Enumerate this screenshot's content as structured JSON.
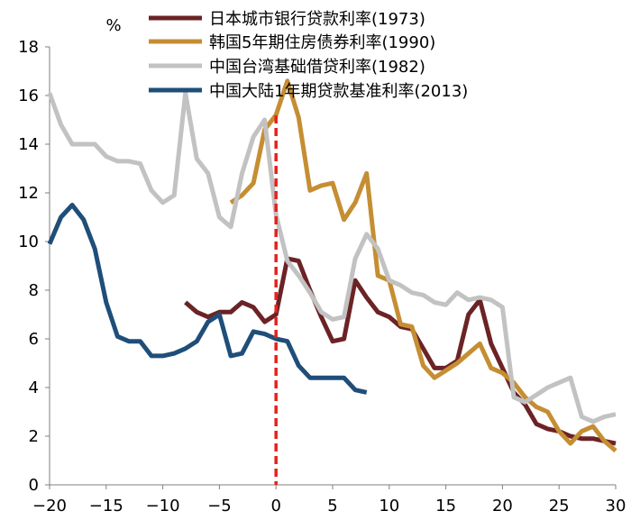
{
  "chart_data": {
    "type": "line",
    "ylabel": "%",
    "xlim": [
      -20,
      30
    ],
    "ylim": [
      0,
      18
    ],
    "x_ticks": [
      -20,
      -15,
      -10,
      -5,
      0,
      5,
      10,
      15,
      20,
      25,
      30
    ],
    "y_ticks": [
      0,
      2,
      4,
      6,
      8,
      10,
      12,
      14,
      16,
      18
    ],
    "x_tick_labels": [
      "−20",
      "−15",
      "−10",
      "−5",
      "0",
      "5",
      "10",
      "15",
      "20",
      "25",
      "30"
    ],
    "y_tick_labels": [
      "0",
      "2",
      "4",
      "6",
      "8",
      "10",
      "12",
      "14",
      "16",
      "18"
    ],
    "vline": {
      "x": 0,
      "color": "#e8211b",
      "style": "dashed"
    },
    "legend_position": "top",
    "series": [
      {
        "name": "日本城市银行贷款利率(1973)",
        "color": "#6b2326",
        "x": [
          -8,
          -7,
          -6,
          -5,
          -4,
          -3,
          -2,
          -1,
          0,
          1,
          2,
          3,
          4,
          5,
          6,
          7,
          8,
          9,
          10,
          11,
          12,
          13,
          14,
          15,
          16,
          17,
          18,
          19,
          20,
          21,
          22,
          23,
          24,
          25,
          26,
          27,
          28,
          29,
          30
        ],
        "y": [
          7.5,
          7.1,
          6.9,
          7.1,
          7.1,
          7.5,
          7.3,
          6.7,
          7.0,
          9.3,
          9.2,
          8.0,
          6.9,
          5.9,
          6.0,
          8.4,
          7.7,
          7.1,
          6.9,
          6.5,
          6.4,
          5.6,
          4.8,
          4.8,
          5.1,
          7.0,
          7.6,
          5.8,
          4.8,
          3.8,
          3.3,
          2.5,
          2.3,
          2.2,
          2.0,
          1.9,
          1.9,
          1.8,
          1.7
        ]
      },
      {
        "name": "韩国5年期住房债券利率(1990)",
        "color": "#c58e33",
        "x": [
          -4,
          -3,
          -2,
          -1,
          0,
          1,
          2,
          3,
          4,
          5,
          6,
          7,
          8,
          9,
          10,
          11,
          12,
          13,
          14,
          15,
          16,
          17,
          18,
          19,
          20,
          21,
          22,
          23,
          24,
          25,
          26,
          27,
          28,
          29,
          30
        ],
        "y": [
          11.6,
          11.9,
          12.4,
          14.6,
          15.2,
          16.6,
          15.1,
          12.1,
          12.3,
          12.4,
          10.9,
          11.6,
          12.8,
          8.6,
          8.4,
          6.6,
          6.5,
          4.9,
          4.4,
          4.7,
          5.0,
          5.4,
          5.8,
          4.8,
          4.6,
          4.2,
          3.6,
          3.2,
          3.0,
          2.2,
          1.7,
          2.2,
          2.4,
          1.8,
          1.4
        ]
      },
      {
        "name": "中国台湾基础借贷利率(1982)",
        "color": "#c2c2c2",
        "x": [
          -20,
          -19,
          -18,
          -17,
          -16,
          -15,
          -14,
          -13,
          -12,
          -11,
          -10,
          -9,
          -8,
          -7,
          -6,
          -5,
          -4,
          -3,
          -2,
          -1,
          0,
          1,
          2,
          3,
          4,
          5,
          6,
          7,
          8,
          9,
          10,
          11,
          12,
          13,
          14,
          15,
          16,
          17,
          18,
          19,
          20,
          21,
          22,
          23,
          24,
          25,
          26,
          27,
          28,
          29,
          30
        ],
        "y": [
          16.1,
          14.8,
          14.0,
          14.0,
          14.0,
          13.5,
          13.3,
          13.3,
          13.2,
          12.1,
          11.6,
          11.9,
          16.1,
          13.4,
          12.8,
          11.0,
          10.6,
          12.8,
          14.3,
          15.0,
          11.1,
          9.2,
          8.6,
          7.9,
          7.1,
          6.8,
          6.9,
          9.3,
          10.3,
          9.7,
          8.4,
          8.2,
          7.9,
          7.8,
          7.5,
          7.4,
          7.9,
          7.6,
          7.7,
          7.6,
          7.3,
          3.6,
          3.4,
          3.7,
          4.0,
          4.2,
          4.4,
          2.8,
          2.6,
          2.8,
          2.9
        ]
      },
      {
        "name": "中国大陆1年期贷款基准利率(2013)",
        "color": "#1f4e79",
        "x": [
          -20,
          -19,
          -18,
          -17,
          -16,
          -15,
          -14,
          -13,
          -12,
          -11,
          -10,
          -9,
          -8,
          -7,
          -6,
          -5,
          -4,
          -3,
          -2,
          -1,
          0,
          1,
          2,
          3,
          4,
          5,
          6,
          7,
          8
        ],
        "y": [
          9.9,
          11.0,
          11.5,
          10.9,
          9.7,
          7.5,
          6.1,
          5.9,
          5.9,
          5.3,
          5.3,
          5.4,
          5.6,
          5.9,
          6.7,
          7.0,
          5.3,
          5.4,
          6.3,
          6.2,
          6.0,
          5.9,
          4.9,
          4.4,
          4.4,
          4.4,
          4.4,
          3.9,
          3.8
        ]
      }
    ]
  }
}
